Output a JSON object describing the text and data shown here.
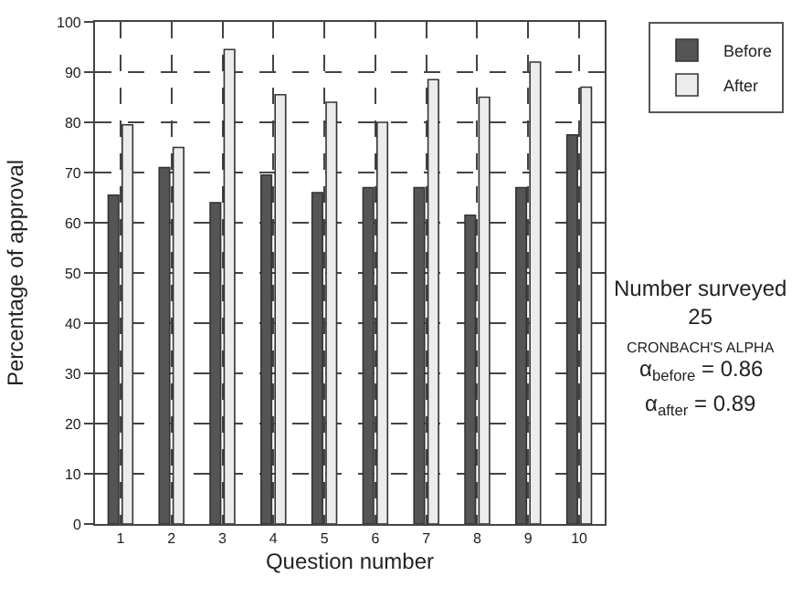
{
  "chart_data": {
    "type": "bar",
    "xlabel": "Question number",
    "ylabel": "Percentage of approval",
    "categories": [
      "1",
      "2",
      "3",
      "4",
      "5",
      "6",
      "7",
      "8",
      "9",
      "10"
    ],
    "series": [
      {
        "name": "Before",
        "color": "#555555",
        "values": [
          65.5,
          71,
          64,
          69.5,
          66,
          67,
          67,
          61.5,
          67,
          77.5
        ]
      },
      {
        "name": "After",
        "color": "#ececec",
        "values": [
          79.5,
          75,
          94.5,
          85.5,
          84,
          80,
          88.5,
          85,
          92,
          87
        ]
      }
    ],
    "ylim": [
      0,
      100
    ],
    "yticks": [
      0,
      10,
      20,
      30,
      40,
      50,
      60,
      70,
      80,
      90,
      100
    ],
    "grid": true,
    "legend": "top right",
    "annotations": [
      "Number surveyed\n25",
      "CRONBACH'S ALPHA",
      "α$_{before}$ = 0.86",
      "α$_{after}$ = 0.89"
    ]
  }
}
